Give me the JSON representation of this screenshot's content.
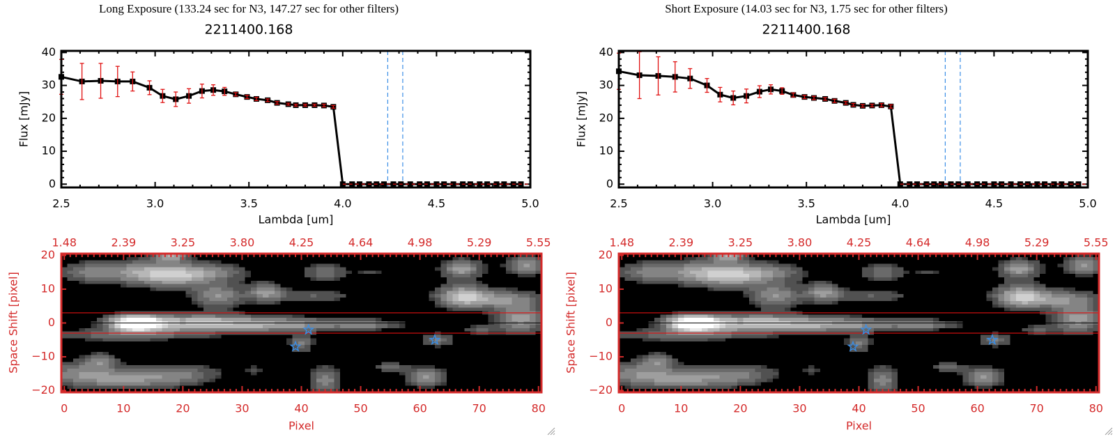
{
  "panels": [
    {
      "title": "Long Exposure (133.24 sec for N3, 147.27 sec for other filters)",
      "object_id": "2211400.168"
    },
    {
      "title": "Short Exposure (14.03 sec for N3, 1.75 sec for other filters)",
      "object_id": "2211400.168"
    }
  ],
  "colors": {
    "error": "#e01010",
    "vline": "#3a8ee6",
    "image_axes": "#d42a2a",
    "star": "#3a8ee6"
  },
  "chart_data": [
    {
      "type": "line",
      "panel": "long",
      "xlabel": "Lambda [um]",
      "ylabel": "Flux [mJy]",
      "xlim": [
        2.5,
        5.0
      ],
      "ylim": [
        -1,
        40.5
      ],
      "xticks": [
        "2.5",
        "3.0",
        "3.5",
        "4.0",
        "4.5",
        "5.0"
      ],
      "xtick_values": [
        2.5,
        3.0,
        3.5,
        4.0,
        4.5,
        5.0
      ],
      "yticks": [
        "0",
        "10",
        "20",
        "30",
        "40"
      ],
      "ytick_values": [
        0,
        10,
        20,
        30,
        40
      ],
      "vlines": [
        4.24,
        4.32
      ],
      "x": [
        2.5,
        2.61,
        2.71,
        2.8,
        2.88,
        2.97,
        3.04,
        3.11,
        3.18,
        3.25,
        3.31,
        3.37,
        3.43,
        3.49,
        3.54,
        3.6,
        3.65,
        3.71,
        3.75,
        3.8,
        3.85,
        3.9,
        3.95,
        4.0,
        4.05,
        4.09,
        4.14,
        4.18,
        4.22,
        4.27,
        4.31,
        4.36,
        4.41,
        4.45,
        4.5,
        4.54,
        4.59,
        4.64,
        4.68,
        4.73,
        4.77,
        4.82,
        4.86,
        4.91,
        4.95
      ],
      "y": [
        32.6,
        31.2,
        31.4,
        31.2,
        31.2,
        29.3,
        26.8,
        25.8,
        26.8,
        28.3,
        28.6,
        28.2,
        27.3,
        26.5,
        25.9,
        25.5,
        24.7,
        24.3,
        24.0,
        24.0,
        24.0,
        23.9,
        23.5,
        0,
        0,
        0,
        0,
        0,
        0,
        0,
        0,
        0,
        0,
        0,
        0,
        0,
        0,
        0,
        0,
        0,
        0,
        0,
        0,
        0,
        0
      ],
      "yerr": [
        5.3,
        5.5,
        5.3,
        4.6,
        2.9,
        2.1,
        2.0,
        2.2,
        2.2,
        2.1,
        1.6,
        1.2,
        0.5,
        0.5,
        0.5,
        0.4,
        0.4,
        0.3,
        0.3,
        0.3,
        0.3,
        0.4,
        0.4,
        0,
        0,
        0,
        0,
        0,
        0,
        0,
        0,
        0,
        0,
        0,
        0,
        0,
        0,
        0,
        0,
        0,
        0,
        0,
        0,
        0,
        0
      ]
    },
    {
      "type": "heatmap",
      "panel": "long",
      "xlabel": "Pixel",
      "ylabel": "Space Shift [pixel]",
      "xlim": [
        0,
        80
      ],
      "ylim": [
        -20,
        20
      ],
      "xticks": [
        "0",
        "10",
        "20",
        "30",
        "40",
        "50",
        "60",
        "70",
        "80"
      ],
      "xtick_values": [
        0,
        10,
        20,
        30,
        40,
        50,
        60,
        70,
        80
      ],
      "top_xticks": [
        "1.48",
        "2.39",
        "3.25",
        "3.80",
        "4.25",
        "4.64",
        "4.98",
        "5.29",
        "5.55"
      ],
      "yticks": [
        "20",
        "10",
        "0",
        "−10",
        "−20"
      ],
      "ytick_values": [
        20,
        10,
        0,
        -10,
        -20
      ],
      "aperture_lines": [
        3,
        -3
      ],
      "center_line": 0,
      "stars": [
        {
          "x": 41.2,
          "y": -2
        },
        {
          "x": 39,
          "y": -7
        },
        {
          "x": 62.5,
          "y": -5
        }
      ]
    },
    {
      "type": "line",
      "panel": "short",
      "xlabel": "Lambda [um]",
      "ylabel": "Flux [mJy]",
      "xlim": [
        2.5,
        5.0
      ],
      "ylim": [
        -1,
        40.5
      ],
      "xticks": [
        "2.5",
        "3.0",
        "3.5",
        "4.0",
        "4.5",
        "5.0"
      ],
      "xtick_values": [
        2.5,
        3.0,
        3.5,
        4.0,
        4.5,
        5.0
      ],
      "yticks": [
        "0",
        "10",
        "20",
        "30",
        "40"
      ],
      "ytick_values": [
        0,
        10,
        20,
        30,
        40
      ],
      "vlines": [
        4.24,
        4.32
      ],
      "x": [
        2.5,
        2.61,
        2.71,
        2.8,
        2.88,
        2.97,
        3.04,
        3.11,
        3.18,
        3.25,
        3.31,
        3.37,
        3.43,
        3.49,
        3.54,
        3.6,
        3.65,
        3.71,
        3.75,
        3.8,
        3.85,
        3.9,
        3.95,
        4.0,
        4.05,
        4.09,
        4.14,
        4.18,
        4.22,
        4.27,
        4.31,
        4.36,
        4.41,
        4.45,
        4.5,
        4.54,
        4.59,
        4.64,
        4.68,
        4.73,
        4.77,
        4.82,
        4.86,
        4.91,
        4.95
      ],
      "y": [
        34.3,
        33.1,
        32.9,
        32.6,
        32.1,
        30.0,
        27.2,
        26.2,
        26.8,
        28.1,
        28.8,
        28.3,
        27.1,
        26.5,
        26.2,
        25.9,
        25.3,
        24.7,
        24.1,
        23.8,
        23.9,
        24.0,
        23.6,
        0,
        0,
        0,
        0,
        0,
        0,
        0,
        0,
        0,
        0,
        0,
        0,
        0,
        0,
        0,
        0,
        0,
        0,
        0,
        0,
        0,
        0
      ],
      "yerr": [
        5.5,
        7.1,
        5.8,
        4.6,
        3.0,
        2.1,
        2.2,
        2.1,
        2.1,
        1.8,
        1.4,
        1.0,
        0.6,
        0.5,
        0.5,
        0.4,
        0.5,
        0.4,
        0.4,
        0.4,
        0.4,
        0.5,
        0.5,
        0,
        0,
        0,
        0,
        0,
        0,
        0,
        0,
        0,
        0,
        0,
        0,
        0,
        0,
        0,
        0,
        0,
        0,
        0,
        0,
        0,
        0
      ]
    },
    {
      "type": "heatmap",
      "panel": "short",
      "xlabel": "Pixel",
      "ylabel": "Space Shift [pixel]",
      "xlim": [
        0,
        80
      ],
      "ylim": [
        -20,
        20
      ],
      "xticks": [
        "0",
        "10",
        "20",
        "30",
        "40",
        "50",
        "60",
        "70",
        "80"
      ],
      "xtick_values": [
        0,
        10,
        20,
        30,
        40,
        50,
        60,
        70,
        80
      ],
      "top_xticks": [
        "1.48",
        "2.39",
        "3.25",
        "3.80",
        "4.25",
        "4.64",
        "4.98",
        "5.29",
        "5.55"
      ],
      "yticks": [
        "20",
        "10",
        "0",
        "−10",
        "−20"
      ],
      "ytick_values": [
        20,
        10,
        0,
        -10,
        -20
      ],
      "aperture_lines": [
        3,
        -3
      ],
      "center_line": 0,
      "stars": [
        {
          "x": 41.2,
          "y": -2
        },
        {
          "x": 39,
          "y": -7
        },
        {
          "x": 62.5,
          "y": -5
        }
      ]
    }
  ]
}
